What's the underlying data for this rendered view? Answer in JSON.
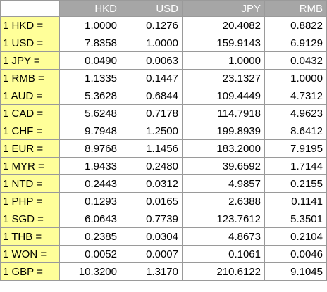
{
  "table": {
    "columns": [
      "",
      "HKD",
      "USD",
      "JPY",
      "RMB"
    ],
    "rows": [
      {
        "label": "1 HKD =",
        "values": [
          "1.0000",
          "0.1276",
          "20.4082",
          "0.8822"
        ]
      },
      {
        "label": "1 USD =",
        "values": [
          "7.8358",
          "1.0000",
          "159.9143",
          "6.9129"
        ]
      },
      {
        "label": "1 JPY =",
        "values": [
          "0.0490",
          "0.0063",
          "1.0000",
          "0.0432"
        ]
      },
      {
        "label": "1 RMB =",
        "values": [
          "1.1335",
          "0.1447",
          "23.1327",
          "1.0000"
        ]
      },
      {
        "label": "1 AUD =",
        "values": [
          "5.3628",
          "0.6844",
          "109.4449",
          "4.7312"
        ]
      },
      {
        "label": "1 CAD =",
        "values": [
          "5.6248",
          "0.7178",
          "114.7918",
          "4.9623"
        ]
      },
      {
        "label": "1 CHF =",
        "values": [
          "9.7948",
          "1.2500",
          "199.8939",
          "8.6412"
        ]
      },
      {
        "label": "1 EUR =",
        "values": [
          "8.9768",
          "1.1456",
          "183.2000",
          "7.9195"
        ]
      },
      {
        "label": "1 MYR =",
        "values": [
          "1.9433",
          "0.2480",
          "39.6592",
          "1.7144"
        ]
      },
      {
        "label": "1 NTD =",
        "values": [
          "0.2443",
          "0.0312",
          "4.9857",
          "0.2155"
        ]
      },
      {
        "label": "1 PHP =",
        "values": [
          "0.1293",
          "0.0165",
          "2.6388",
          "0.1141"
        ]
      },
      {
        "label": "1 SGD =",
        "values": [
          "6.0643",
          "0.7739",
          "123.7612",
          "5.3501"
        ]
      },
      {
        "label": "1 THB =",
        "values": [
          "0.2385",
          "0.0304",
          "4.8673",
          "0.2104"
        ]
      },
      {
        "label": "1 WON =",
        "values": [
          "0.0052",
          "0.0007",
          "0.1061",
          "0.0046"
        ]
      },
      {
        "label": "1 GBP =",
        "values": [
          "10.3200",
          "1.3170",
          "210.6122",
          "9.1045"
        ]
      }
    ]
  },
  "colors": {
    "header_background": "#a6a6a6",
    "header_text": "#ffffff",
    "label_background": "#ffff99",
    "cell_background": "#ffffff",
    "grid": "#9a9a9a"
  }
}
